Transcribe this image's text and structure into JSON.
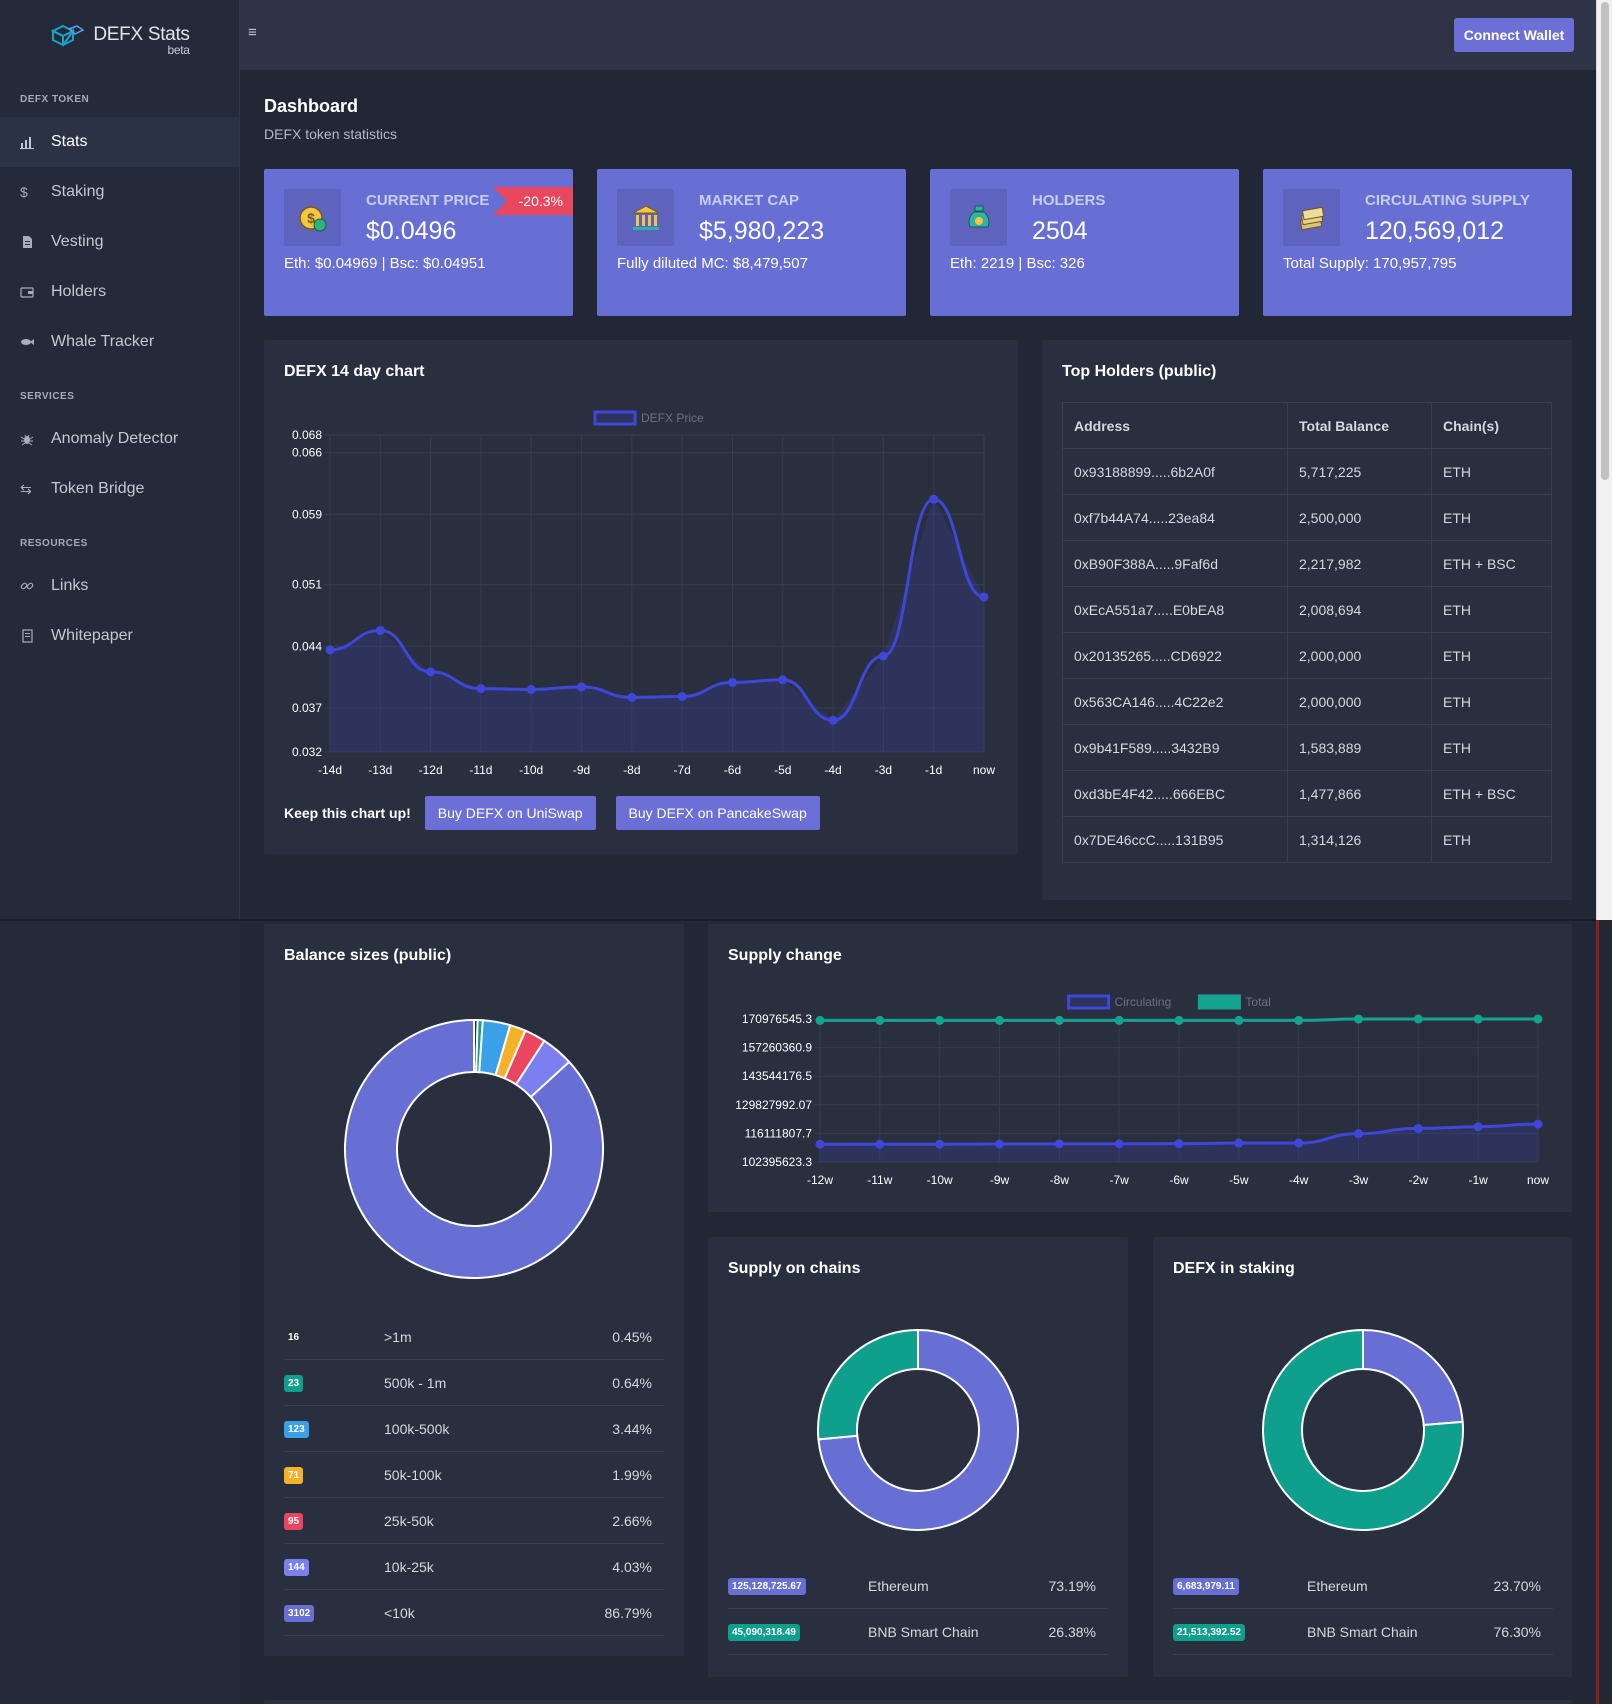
{
  "brand": {
    "name": "DEFX Stats",
    "beta": "beta"
  },
  "topbar": {
    "menu_icon": "≡",
    "connect_label": "Connect Wallet"
  },
  "sidebar": {
    "sections": {
      "token": "DEFX TOKEN",
      "services": "SERVICES",
      "resources": "RESOURCES"
    },
    "items": [
      {
        "label": "Stats",
        "icon": "bar-chart-icon"
      },
      {
        "label": "Staking",
        "icon": "dollar-icon"
      },
      {
        "label": "Vesting",
        "icon": "document-icon"
      },
      {
        "label": "Holders",
        "icon": "wallet-icon"
      },
      {
        "label": "Whale Tracker",
        "icon": "fish-icon"
      },
      {
        "label": "Anomaly Detector",
        "icon": "bug-icon"
      },
      {
        "label": "Token Bridge",
        "icon": "swap-arrows-icon"
      },
      {
        "label": "Links",
        "icon": "link-icon"
      },
      {
        "label": "Whitepaper",
        "icon": "page-icon"
      }
    ]
  },
  "header": {
    "title": "Dashboard",
    "subtitle": "DEFX token statistics"
  },
  "cards": [
    {
      "label": "CURRENT PRICE",
      "value": "$0.0496",
      "sub": "Eth: $0.04969 | Bsc: $0.04951",
      "badge": "-20.3%",
      "icon": "coin-icon"
    },
    {
      "label": "MARKET CAP",
      "value": "$5,980,223",
      "sub": "Fully diluted MC: $8,479,507",
      "icon": "bank-icon"
    },
    {
      "label": "HOLDERS",
      "value": "2504",
      "sub": "Eth: 2219 | Bsc: 326",
      "icon": "money-bag-icon"
    },
    {
      "label": "CIRCULATING SUPPLY",
      "value": "120,569,012",
      "sub": "Total Supply: 170,957,795",
      "icon": "cash-stack-icon"
    }
  ],
  "price_chart": {
    "title": "DEFX 14 day chart",
    "keep_label": "Keep this chart up!",
    "buy_uniswap": "Buy DEFX on UniSwap",
    "buy_pancake": "Buy DEFX on PancakeSwap"
  },
  "holders": {
    "title": "Top Holders (public)",
    "columns": [
      "Address",
      "Total Balance",
      "Chain(s)"
    ],
    "rows": [
      [
        "0x93188899.....6b2A0f",
        "5,717,225",
        "ETH"
      ],
      [
        "0xf7b44A74.....23ea84",
        "2,500,000",
        "ETH"
      ],
      [
        "0xB90F388A.....9Faf6d",
        "2,217,982",
        "ETH + BSC"
      ],
      [
        "0xEcA551a7.....E0bEA8",
        "2,008,694",
        "ETH"
      ],
      [
        "0x20135265.....CD6922",
        "2,000,000",
        "ETH"
      ],
      [
        "0x563CA146.....4C22e2",
        "2,000,000",
        "ETH"
      ],
      [
        "0x9b41F589.....3432B9",
        "1,583,889",
        "ETH"
      ],
      [
        "0xd3bE4F42.....666EBC",
        "1,477,866",
        "ETH + BSC"
      ],
      [
        "0x7DE46ccC.....131B95",
        "1,314,126",
        "ETH"
      ]
    ]
  },
  "balance": {
    "title": "Balance sizes (public)",
    "rows": [
      {
        "count": "16",
        "range": ">1m",
        "pct": "0.45%",
        "color": "#2b2f3a"
      },
      {
        "count": "23",
        "range": "500k - 1m",
        "pct": "0.64%",
        "color": "#0f9f8d"
      },
      {
        "count": "123",
        "range": "100k-500k",
        "pct": "3.44%",
        "color": "#3aa0e8"
      },
      {
        "count": "71",
        "range": "50k-100k",
        "pct": "1.99%",
        "color": "#f5b12a"
      },
      {
        "count": "95",
        "range": "25k-50k",
        "pct": "2.66%",
        "color": "#ea4660"
      },
      {
        "count": "144",
        "range": "10k-25k",
        "pct": "4.03%",
        "color": "#7b7ff0"
      },
      {
        "count": "3102",
        "range": "<10k",
        "pct": "86.79%",
        "color": "#676ed4"
      }
    ]
  },
  "supply_change": {
    "title": "Supply change"
  },
  "supply_chains": {
    "title": "Supply on chains",
    "rows": [
      {
        "amount": "125,128,725.67",
        "chain": "Ethereum",
        "pct": "73.19%",
        "color": "#676ed4"
      },
      {
        "amount": "45,090,318.49",
        "chain": "BNB Smart Chain",
        "pct": "26.38%",
        "color": "#0f9f8d"
      }
    ]
  },
  "staking": {
    "title": "DEFX in staking",
    "rows": [
      {
        "amount": "6,683,979.11",
        "chain": "Ethereum",
        "pct": "23.70%",
        "color": "#676ed4"
      },
      {
        "amount": "21,513,392.52",
        "chain": "BNB Smart Chain",
        "pct": "76.30%",
        "color": "#0f9f8d"
      }
    ]
  },
  "chart_data": [
    {
      "type": "line",
      "legend": [
        "DEFX Price"
      ],
      "x": [
        "-14d",
        "-13d",
        "-12d",
        "-11d",
        "-10d",
        "-9d",
        "-8d",
        "-7d",
        "-6d",
        "-5d",
        "-4d",
        "-3d",
        "-1d",
        "now"
      ],
      "y_ticks": [
        "0.068",
        "0.066",
        "0.059",
        "0.051",
        "0.044",
        "0.037",
        "0.032"
      ],
      "ylim": [
        0.032,
        0.068
      ],
      "series": [
        {
          "name": "DEFX Price",
          "values": [
            0.0436,
            0.0458,
            0.0411,
            0.0392,
            0.0391,
            0.0394,
            0.0382,
            0.0383,
            0.0399,
            0.0402,
            0.0356,
            0.0429,
            0.0607,
            0.0496
          ]
        }
      ],
      "color": "#3f47d8"
    },
    {
      "type": "line",
      "legend": [
        "Circulating",
        "Total"
      ],
      "x": [
        "-12w",
        "-11w",
        "-10w",
        "-9w",
        "-8w",
        "-7w",
        "-6w",
        "-5w",
        "-4w",
        "-3w",
        "-2w",
        "-1w",
        "now"
      ],
      "y_ticks": [
        "170976545.3",
        "157260360.9",
        "143544176.5",
        "129827992.07",
        "116111807.7",
        "102395623.3"
      ],
      "ylim": [
        102395623.3,
        170976545.3
      ],
      "series": [
        {
          "name": "Circulating",
          "values": [
            110900000,
            110900000,
            110900000,
            111000000,
            111100000,
            111100000,
            111200000,
            111500000,
            111500000,
            116000000,
            118500000,
            119300000,
            120569012
          ],
          "color": "#3f47d8"
        },
        {
          "name": "Total",
          "values": [
            170300000,
            170300000,
            170300000,
            170300000,
            170300000,
            170300000,
            170300000,
            170300000,
            170300000,
            170957795,
            170957795,
            170957795,
            170957795
          ],
          "color": "#14a38f"
        }
      ]
    },
    {
      "type": "pie",
      "title": "Balance sizes (public)",
      "labels": [
        ">1m",
        "500k - 1m",
        "100k-500k",
        "50k-100k",
        "25k-50k",
        "10k-25k",
        "<10k"
      ],
      "values": [
        0.45,
        0.64,
        3.44,
        1.99,
        2.66,
        4.03,
        86.79
      ],
      "colors": [
        "#2b2f3a",
        "#0f9f8d",
        "#3aa0e8",
        "#f5b12a",
        "#ea4660",
        "#7b7ff0",
        "#676ed4"
      ]
    },
    {
      "type": "pie",
      "title": "Supply on chains",
      "labels": [
        "Ethereum",
        "BNB Smart Chain"
      ],
      "values": [
        73.19,
        26.38
      ],
      "colors": [
        "#676ed4",
        "#0f9f8d"
      ]
    },
    {
      "type": "pie",
      "title": "DEFX in staking",
      "labels": [
        "Ethereum",
        "BNB Smart Chain"
      ],
      "values": [
        23.7,
        76.3
      ],
      "colors": [
        "#676ed4",
        "#0f9f8d"
      ]
    }
  ]
}
